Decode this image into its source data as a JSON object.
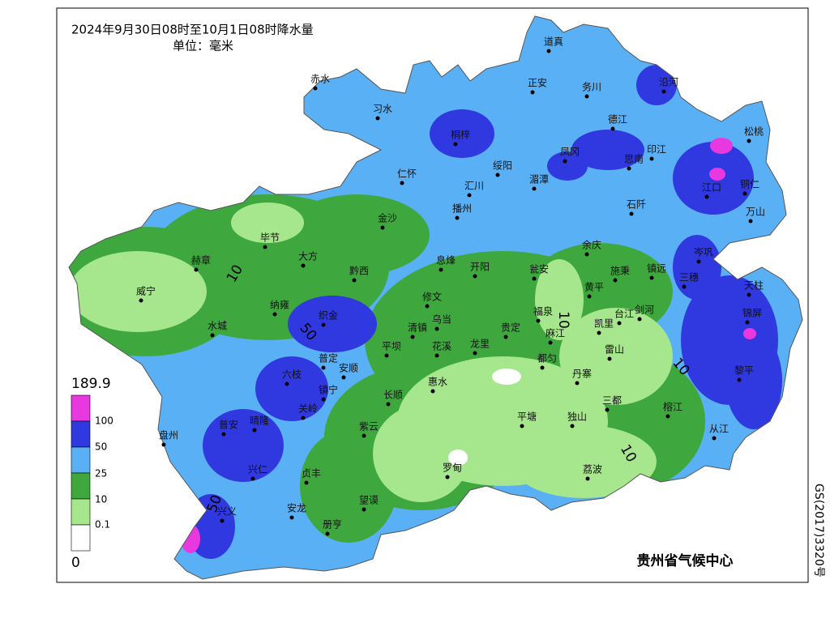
{
  "header": {
    "title": "2024年9月30日08时至10月1日08时降水量",
    "unit": "单位：毫米"
  },
  "legend": {
    "labels": [
      189.9,
      100,
      50,
      25,
      10,
      0.1,
      0
    ],
    "colors": [
      "#e838e0",
      "#3038e0",
      "#5ab0f5",
      "#3ea83e",
      "#a6e68c",
      "#ffffff"
    ]
  },
  "cities": [
    "道真",
    "赤水",
    "习水",
    "正安",
    "务川",
    "沿河",
    "桐梓",
    "德江",
    "绥阳",
    "凤冈",
    "思南",
    "印江",
    "松桃",
    "仁怀",
    "汇川",
    "播州",
    "湄潭",
    "石阡",
    "江口",
    "铜仁",
    "万山",
    "金沙",
    "毕节",
    "赫章",
    "大方",
    "黔西",
    "息烽",
    "开阳",
    "瓮安",
    "余庆",
    "施秉",
    "镇远",
    "岑巩",
    "三穗",
    "天柱",
    "威宁",
    "纳雍",
    "织金",
    "修文",
    "乌当",
    "黄平",
    "福泉",
    "剑河",
    "台江",
    "锦屏",
    "水城",
    "清镇",
    "贵定",
    "凯里",
    "麻江",
    "平坝",
    "花溪",
    "龙里",
    "雷山",
    "黎平",
    "普定",
    "安顺",
    "都匀",
    "六枝",
    "丹寨",
    "惠水",
    "镇宁",
    "长顺",
    "三都",
    "关岭",
    "普安",
    "晴隆",
    "盘州",
    "紫云",
    "平塘",
    "独山",
    "榕江",
    "从江",
    "兴仁",
    "贞丰",
    "罗甸",
    "荔波",
    "兴义",
    "安龙",
    "望谟",
    "册亨"
  ],
  "contours": [
    10,
    50,
    10,
    10,
    10,
    50
  ],
  "credit": "贵州省气候中心",
  "approval": "GS(2017)3320号"
}
